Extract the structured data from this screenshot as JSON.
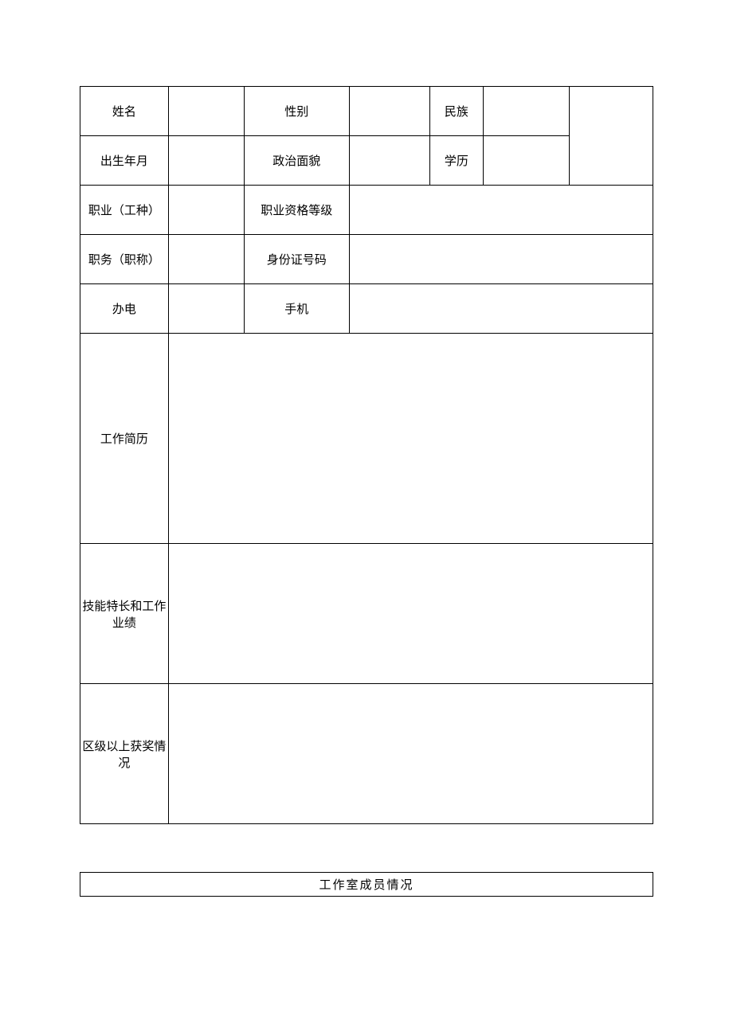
{
  "table": {
    "border_color": "#000000",
    "background_color": "#ffffff",
    "text_color": "#000000",
    "font_size_pt": 11,
    "row_heights": {
      "normal": 62,
      "tall": 264,
      "medium": 176
    },
    "column_widths_pct": [
      15.4,
      13.2,
      18.4,
      14.0,
      9.4,
      15.0,
      14.6
    ],
    "rows": [
      {
        "label1": "姓名",
        "val1": "",
        "label2": "性别",
        "val2": "",
        "label3": "民族",
        "val3": ""
      },
      {
        "label1": "出生年月",
        "val1": "",
        "label2": "政治面貌",
        "val2": "",
        "label3": "学历",
        "val3": ""
      },
      {
        "label1": "职业（工种）",
        "val1": "",
        "label2": "职业资格等级",
        "val_merged": ""
      },
      {
        "label1": "职务（职称）",
        "val1": "",
        "label2": "身份证号码",
        "val_merged": ""
      },
      {
        "label1": "办电",
        "val1": "",
        "label2": "手机",
        "val_merged": ""
      },
      {
        "label1": "工作简历",
        "val_full": ""
      },
      {
        "label1": "技能特长和工作业绩",
        "val_full": ""
      },
      {
        "label1": "区级以上获奖情况",
        "val_full": ""
      }
    ]
  },
  "section_title": "工作室成员情况"
}
